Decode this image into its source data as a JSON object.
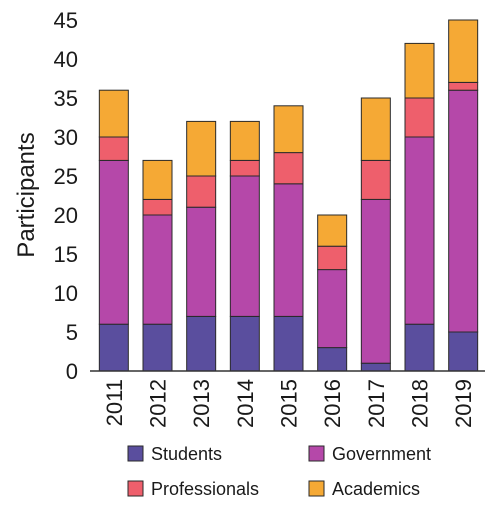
{
  "chart_data": {
    "type": "bar",
    "stacked": true,
    "categories": [
      "2011",
      "2012",
      "2013",
      "2014",
      "2015",
      "2016",
      "2017",
      "2018",
      "2019"
    ],
    "series": [
      {
        "name": "Students",
        "color": "#5a4e9e",
        "values": [
          6,
          6,
          7,
          7,
          7,
          3,
          1,
          6,
          5
        ]
      },
      {
        "name": "Government",
        "color": "#b548a9",
        "values": [
          21,
          14,
          14,
          18,
          17,
          10,
          21,
          24,
          31
        ]
      },
      {
        "name": "Professionals",
        "color": "#ee5f6c",
        "values": [
          3,
          2,
          4,
          2,
          4,
          3,
          5,
          5,
          1
        ]
      },
      {
        "name": "Academics",
        "color": "#f5a935",
        "values": [
          6,
          5,
          7,
          5,
          6,
          4,
          8,
          7,
          8
        ]
      }
    ],
    "ylabel": "Participants",
    "ylim": [
      0,
      45
    ],
    "yticks": [
      "0",
      "5",
      "10",
      "15",
      "20",
      "25",
      "30",
      "35",
      "40",
      "45"
    ],
    "grid": false,
    "legend_position": "bottom"
  }
}
